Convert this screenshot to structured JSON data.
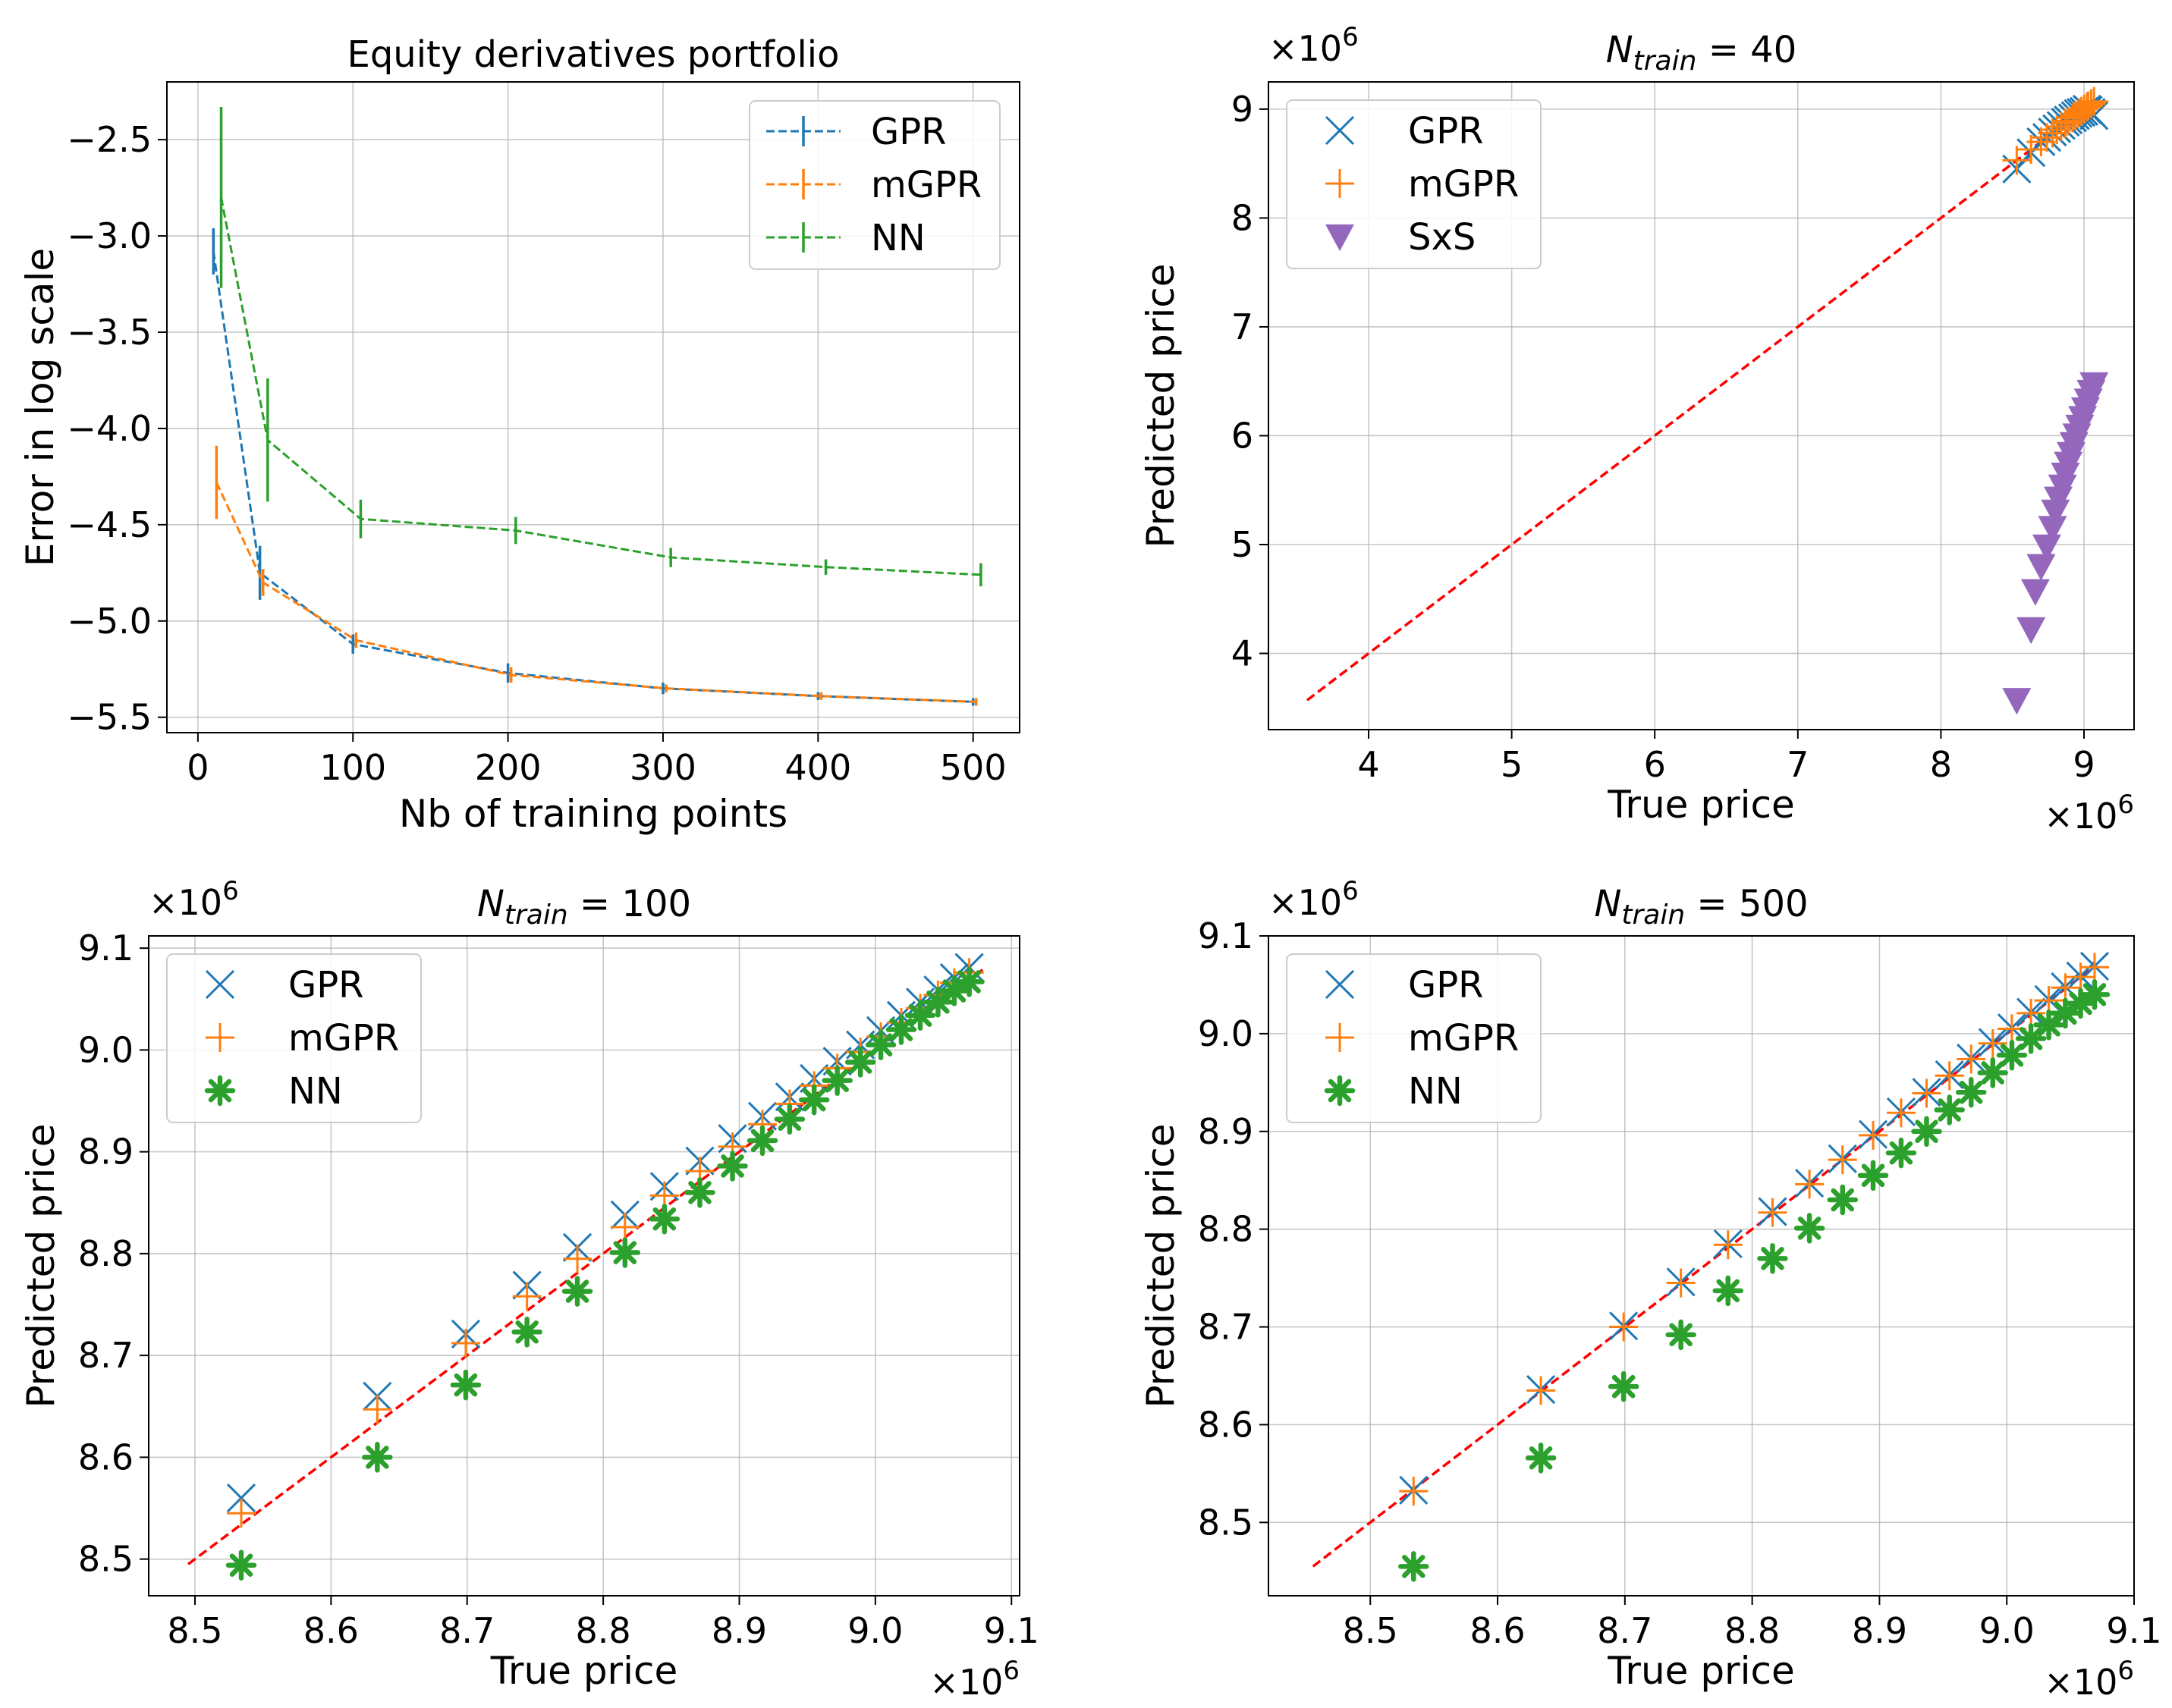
{
  "chart_data": [
    {
      "type": "line",
      "title": "Equity derivatives portfolio",
      "xlabel": "Nb of training points",
      "ylabel": "Error in log scale",
      "xlim": [
        -20,
        530
      ],
      "ylim": [
        -5.58,
        -2.2
      ],
      "xticks": [
        0,
        100,
        200,
        300,
        400,
        500
      ],
      "xtick_labels": [
        "0",
        "100",
        "200",
        "300",
        "400",
        "500"
      ],
      "yticks": [
        -2.5,
        -3.0,
        -3.5,
        -4.0,
        -4.5,
        -5.0,
        -5.5
      ],
      "ytick_labels": [
        "−2.5",
        "−3.0",
        "−3.5",
        "−4.0",
        "−4.5",
        "−5.0",
        "−5.5"
      ],
      "grid": true,
      "legend_position": "top-right",
      "series": [
        {
          "name": "GPR",
          "color": "#1f77b4",
          "x": [
            10,
            40,
            100,
            200,
            300,
            400,
            500
          ],
          "y": [
            -3.08,
            -4.75,
            -5.12,
            -5.27,
            -5.35,
            -5.39,
            -5.42
          ],
          "yerr": [
            0.12,
            0.14,
            0.05,
            0.05,
            0.03,
            0.02,
            0.02
          ]
        },
        {
          "name": "mGPR",
          "color": "#ff7f0e",
          "x": [
            12,
            42,
            102,
            202,
            302,
            402,
            502
          ],
          "y": [
            -4.28,
            -4.8,
            -5.1,
            -5.28,
            -5.35,
            -5.39,
            -5.42
          ],
          "yerr": [
            0.19,
            0.07,
            0.04,
            0.04,
            0.02,
            0.02,
            0.02
          ]
        },
        {
          "name": "NN",
          "color": "#2ca02c",
          "x": [
            15,
            45,
            105,
            205,
            305,
            405,
            505
          ],
          "y": [
            -2.8,
            -4.06,
            -4.47,
            -4.53,
            -4.67,
            -4.72,
            -4.76
          ],
          "yerr": [
            0.47,
            0.32,
            0.1,
            0.07,
            0.05,
            0.04,
            0.06
          ]
        }
      ]
    },
    {
      "type": "scatter",
      "title_main": "N",
      "title_sub": "train",
      "title_rest": " = 40",
      "xlabel": "True price",
      "ylabel": "Predicted price",
      "x_multiplier": "×10",
      "x_multiplier_exp": "6",
      "y_multiplier": "×10",
      "y_multiplier_exp": "6",
      "xlim": [
        3.3,
        9.35
      ],
      "ylim": [
        3.3,
        9.25
      ],
      "xticks": [
        4,
        5,
        6,
        7,
        8,
        9
      ],
      "xtick_labels": [
        "4",
        "5",
        "6",
        "7",
        "8",
        "9"
      ],
      "yticks": [
        4,
        5,
        6,
        7,
        8,
        9
      ],
      "ytick_labels": [
        "4",
        "5",
        "6",
        "7",
        "8",
        "9"
      ],
      "grid": true,
      "legend_position": "top-left",
      "reference_line": {
        "from": [
          3.57,
          3.57
        ],
        "to": [
          9.08,
          9.08
        ],
        "color": "#ff0000",
        "style": "dashed"
      },
      "series": [
        {
          "name": "GPR",
          "marker": "x",
          "color": "#1f77b4",
          "x": [
            8.53,
            8.63,
            8.7,
            8.74,
            8.78,
            8.81,
            8.84,
            8.87,
            8.89,
            8.92,
            8.94,
            8.96,
            8.98,
            9.0,
            9.02,
            9.03,
            9.05,
            9.07
          ],
          "y": [
            8.45,
            8.6,
            8.7,
            8.74,
            8.79,
            8.82,
            8.85,
            8.88,
            8.9,
            8.92,
            8.94,
            8.96,
            8.97,
            8.98,
            9.0,
            8.99,
            8.97,
            8.94
          ]
        },
        {
          "name": "mGPR",
          "marker": "+",
          "color": "#ff7f0e",
          "x": [
            8.53,
            8.63,
            8.7,
            8.74,
            8.78,
            8.81,
            8.84,
            8.87,
            8.89,
            8.92,
            8.94,
            8.96,
            8.98,
            9.0,
            9.02,
            9.03,
            9.05,
            9.07
          ],
          "y": [
            8.53,
            8.63,
            8.7,
            8.74,
            8.78,
            8.81,
            8.84,
            8.87,
            8.89,
            8.92,
            8.94,
            8.96,
            8.98,
            9.0,
            9.02,
            9.03,
            9.05,
            9.07
          ]
        },
        {
          "name": "SxS",
          "marker": "v",
          "color": "#9467bd",
          "x": [
            8.53,
            8.63,
            8.66,
            8.7,
            8.74,
            8.78,
            8.8,
            8.82,
            8.85,
            8.87,
            8.89,
            8.91,
            8.93,
            8.95,
            8.97,
            8.99,
            9.01,
            9.03,
            9.05,
            9.07
          ],
          "y": [
            3.57,
            4.22,
            4.57,
            4.8,
            4.98,
            5.15,
            5.3,
            5.42,
            5.53,
            5.64,
            5.74,
            5.83,
            5.92,
            6.0,
            6.08,
            6.16,
            6.24,
            6.32,
            6.4,
            6.47
          ]
        }
      ]
    },
    {
      "type": "scatter",
      "title_main": "N",
      "title_sub": "train",
      "title_rest": " = 100",
      "xlabel": "True price",
      "ylabel": "Predicted price",
      "x_multiplier": "×10",
      "x_multiplier_exp": "6",
      "y_multiplier": "×10",
      "y_multiplier_exp": "6",
      "xlim": [
        8.466,
        9.106
      ],
      "ylim": [
        8.464,
        9.112
      ],
      "xticks": [
        8.5,
        8.6,
        8.7,
        8.8,
        8.9,
        9.0,
        9.1
      ],
      "xtick_labels": [
        "8.5",
        "8.6",
        "8.7",
        "8.8",
        "8.9",
        "9.0",
        "9.1"
      ],
      "yticks": [
        8.5,
        8.6,
        8.7,
        8.8,
        8.9,
        9.0,
        9.1
      ],
      "ytick_labels": [
        "8.5",
        "8.6",
        "8.7",
        "8.8",
        "8.9",
        "9.0",
        "9.1"
      ],
      "grid": true,
      "legend_position": "top-left",
      "reference_line": {
        "from": [
          8.495,
          8.495
        ],
        "to": [
          9.08,
          9.08
        ],
        "color": "#ff0000",
        "style": "dashed"
      },
      "series": [
        {
          "name": "GPR",
          "marker": "x",
          "color": "#1f77b4",
          "x": [
            8.534,
            8.634,
            8.699,
            8.744,
            8.781,
            8.816,
            8.845,
            8.871,
            8.895,
            8.917,
            8.937,
            8.955,
            8.972,
            8.989,
            9.004,
            9.019,
            9.033,
            9.046,
            9.058,
            9.069
          ],
          "y": [
            8.56,
            8.66,
            8.721,
            8.769,
            8.806,
            8.838,
            8.866,
            8.891,
            8.913,
            8.935,
            8.954,
            8.972,
            8.989,
            9.005,
            9.019,
            9.034,
            9.047,
            9.059,
            9.071,
            9.081
          ]
        },
        {
          "name": "mGPR",
          "marker": "+",
          "color": "#ff7f0e",
          "x": [
            8.534,
            8.634,
            8.699,
            8.744,
            8.781,
            8.816,
            8.845,
            8.871,
            8.895,
            8.917,
            8.937,
            8.955,
            8.972,
            8.989,
            9.004,
            9.019,
            9.033,
            9.046,
            9.058,
            9.069
          ],
          "y": [
            8.545,
            8.647,
            8.712,
            8.758,
            8.795,
            8.826,
            8.857,
            8.881,
            8.905,
            8.927,
            8.947,
            8.965,
            8.982,
            8.998,
            9.013,
            9.027,
            9.041,
            9.054,
            9.066,
            9.076
          ]
        },
        {
          "name": "NN",
          "marker": "*",
          "color": "#2ca02c",
          "x": [
            8.534,
            8.634,
            8.699,
            8.744,
            8.781,
            8.816,
            8.845,
            8.871,
            8.895,
            8.917,
            8.937,
            8.955,
            8.972,
            8.989,
            9.004,
            9.019,
            9.033,
            9.046,
            9.058,
            9.069
          ],
          "y": [
            8.494,
            8.6,
            8.671,
            8.723,
            8.763,
            8.801,
            8.834,
            8.86,
            8.886,
            8.911,
            8.932,
            8.951,
            8.97,
            8.988,
            9.005,
            9.02,
            9.034,
            9.047,
            9.058,
            9.067
          ]
        }
      ]
    },
    {
      "type": "scatter",
      "title_main": "N",
      "title_sub": "train",
      "title_rest": " = 500",
      "xlabel": "True price",
      "ylabel": "Predicted price",
      "x_multiplier": "×10",
      "x_multiplier_exp": "6",
      "y_multiplier": "×10",
      "y_multiplier_exp": "6",
      "xlim": [
        8.42,
        9.1
      ],
      "ylim": [
        8.425,
        9.1
      ],
      "xticks": [
        8.5,
        8.6,
        8.7,
        8.8,
        8.9,
        9.0,
        9.1
      ],
      "xtick_labels": [
        "8.5",
        "8.6",
        "8.7",
        "8.8",
        "8.9",
        "9.0",
        "9.1"
      ],
      "yticks": [
        8.5,
        8.6,
        8.7,
        8.8,
        8.9,
        9.0,
        9.1
      ],
      "ytick_labels": [
        "8.5",
        "8.6",
        "8.7",
        "8.8",
        "8.9",
        "9.0",
        "9.1"
      ],
      "grid": true,
      "legend_position": "top-left",
      "reference_line": {
        "from": [
          8.455,
          8.455
        ],
        "to": [
          9.07,
          9.07
        ],
        "color": "#ff0000",
        "style": "dashed"
      },
      "series": [
        {
          "name": "GPR",
          "marker": "x",
          "color": "#1f77b4",
          "x": [
            8.534,
            8.634,
            8.699,
            8.744,
            8.781,
            8.816,
            8.845,
            8.871,
            8.895,
            8.917,
            8.937,
            8.955,
            8.972,
            8.989,
            9.004,
            9.019,
            9.033,
            9.046,
            9.058,
            9.069
          ],
          "y": [
            8.533,
            8.636,
            8.701,
            8.746,
            8.785,
            8.818,
            8.847,
            8.872,
            8.897,
            8.92,
            8.94,
            8.958,
            8.975,
            8.991,
            9.006,
            9.022,
            9.035,
            9.048,
            9.059,
            9.069
          ]
        },
        {
          "name": "mGPR",
          "marker": "+",
          "color": "#ff7f0e",
          "x": [
            8.534,
            8.634,
            8.699,
            8.744,
            8.781,
            8.816,
            8.845,
            8.871,
            8.895,
            8.917,
            8.937,
            8.955,
            8.972,
            8.989,
            9.004,
            9.019,
            9.033,
            9.046,
            9.058,
            9.069
          ],
          "y": [
            8.532,
            8.635,
            8.7,
            8.745,
            8.784,
            8.817,
            8.846,
            8.871,
            8.896,
            8.919,
            8.939,
            8.957,
            8.974,
            8.99,
            9.005,
            9.021,
            9.034,
            9.047,
            9.058,
            9.068
          ]
        },
        {
          "name": "NN",
          "marker": "*",
          "color": "#2ca02c",
          "x": [
            8.534,
            8.634,
            8.699,
            8.744,
            8.781,
            8.816,
            8.845,
            8.871,
            8.895,
            8.917,
            8.937,
            8.955,
            8.972,
            8.989,
            9.004,
            9.019,
            9.033,
            9.046,
            9.058,
            9.069
          ],
          "y": [
            8.455,
            8.566,
            8.639,
            8.692,
            8.737,
            8.77,
            8.801,
            8.83,
            8.855,
            8.878,
            8.9,
            8.922,
            8.94,
            8.96,
            8.978,
            8.995,
            9.009,
            9.021,
            9.031,
            9.04
          ]
        }
      ]
    }
  ]
}
